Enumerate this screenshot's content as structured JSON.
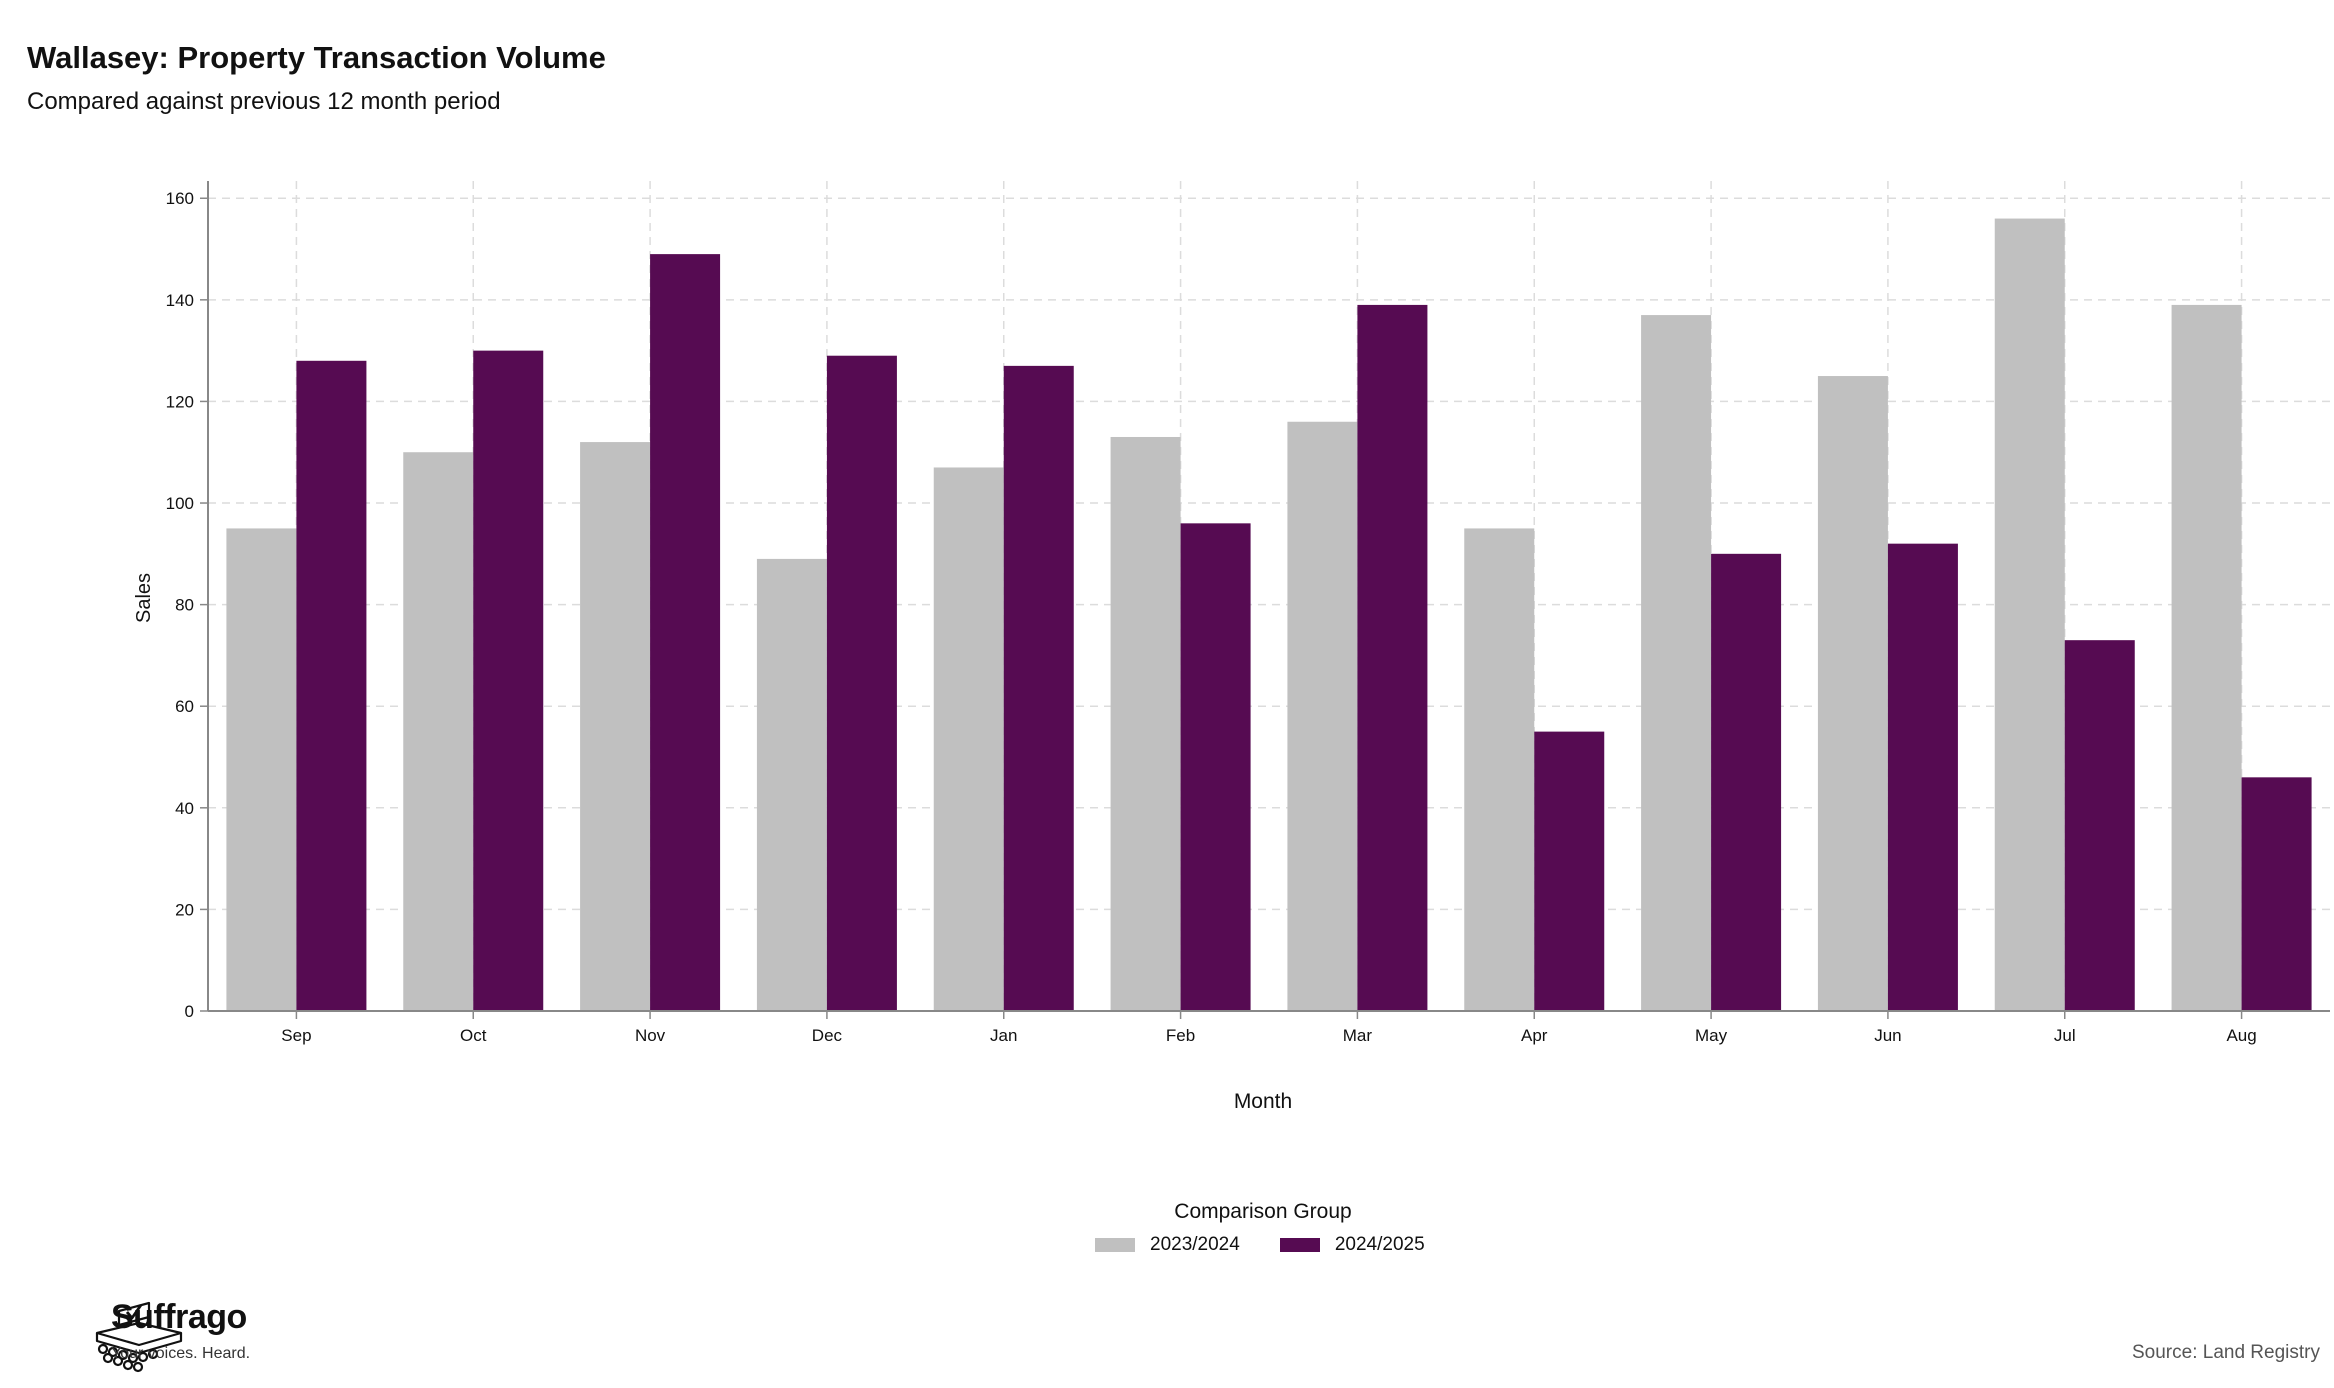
{
  "header": {
    "title": "Wallasey: Property Transaction Volume",
    "subtitle": "Compared against previous 12 month period"
  },
  "chart_data": {
    "type": "bar",
    "categories": [
      "Sep",
      "Oct",
      "Nov",
      "Dec",
      "Jan",
      "Feb",
      "Mar",
      "Apr",
      "May",
      "Jun",
      "Jul",
      "Aug"
    ],
    "series": [
      {
        "name": "2023/2024",
        "color": "#c0c0c0",
        "values": [
          95,
          110,
          112,
          89,
          107,
          113,
          116,
          95,
          137,
          125,
          156,
          139
        ]
      },
      {
        "name": "2024/2025",
        "color": "#560b52",
        "values": [
          128,
          130,
          149,
          129,
          127,
          96,
          139,
          55,
          90,
          92,
          73,
          46
        ]
      }
    ],
    "xlabel": "Month",
    "ylabel": "Sales",
    "ylim": [
      0,
      163
    ],
    "yticks": [
      0,
      20,
      40,
      60,
      80,
      100,
      120,
      140,
      160
    ],
    "grid": true,
    "legend_title": "Comparison Group",
    "legend_position": "bottom"
  },
  "footer": {
    "brand": "Suffrago",
    "tagline": "Your voices. Heard.",
    "source": "Source: Land Registry"
  }
}
